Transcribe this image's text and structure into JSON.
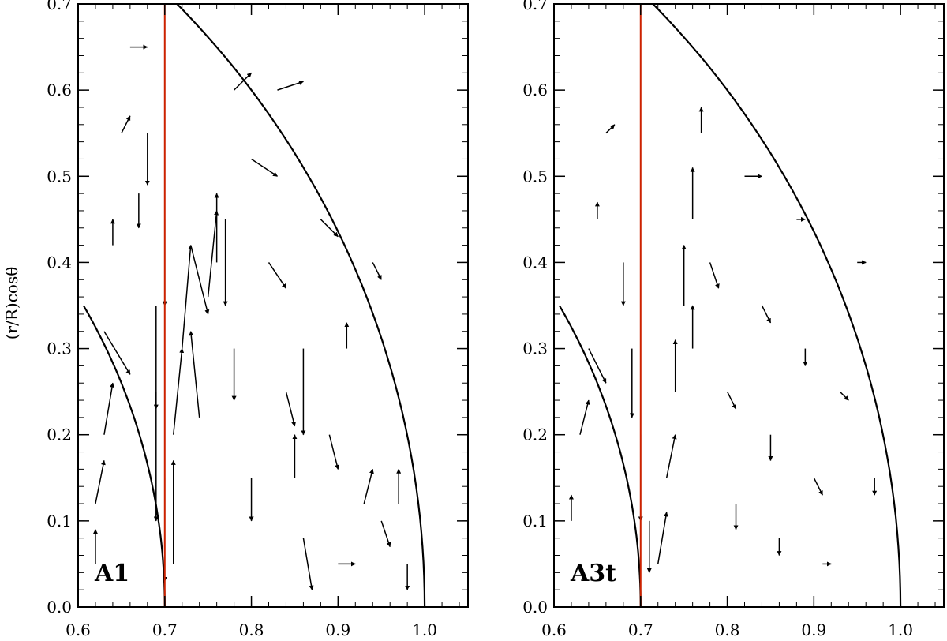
{
  "chart_data": [
    {
      "type": "scatter",
      "panel": "A1",
      "panel_label": "A1",
      "ylabel": "(r/R)cosθ",
      "xlim": [
        0.6,
        1.05
      ],
      "ylim": [
        0.0,
        0.7
      ],
      "x_ticks": [
        "0.6",
        "0.7",
        "0.8",
        "0.9",
        "1.0"
      ],
      "y_ticks": [
        "0.0",
        "0.1",
        "0.2",
        "0.3",
        "0.4",
        "0.5",
        "0.6",
        "0.7"
      ],
      "colors": {
        "frame": "#000000",
        "arrows": "#000000",
        "marker_line": "#cc2200"
      },
      "vertical_line_x": 0.7,
      "outer_boundary_radius": 1.0,
      "inner_boundary_radius": 0.7,
      "inner_boundary_angle_deg": 30,
      "vectors": [
        [
          0.62,
          0.05,
          0.0,
          0.04
        ],
        [
          0.62,
          0.12,
          0.01,
          0.05
        ],
        [
          0.63,
          0.2,
          0.01,
          0.06
        ],
        [
          0.63,
          0.32,
          0.03,
          -0.05
        ],
        [
          0.64,
          0.42,
          0.0,
          0.03
        ],
        [
          0.65,
          0.55,
          0.01,
          0.02
        ],
        [
          0.66,
          0.65,
          0.02,
          0.0
        ],
        [
          0.67,
          0.48,
          0.0,
          -0.04
        ],
        [
          0.68,
          0.55,
          0.0,
          -0.06
        ],
        [
          0.69,
          0.35,
          0.0,
          -0.12
        ],
        [
          0.69,
          0.25,
          0.0,
          -0.15
        ],
        [
          0.7,
          0.45,
          0.0,
          -0.1
        ],
        [
          0.7,
          0.15,
          0.0,
          -0.12
        ],
        [
          0.71,
          0.05,
          0.0,
          0.12
        ],
        [
          0.71,
          0.2,
          0.01,
          0.1
        ],
        [
          0.72,
          0.3,
          0.01,
          0.12
        ],
        [
          0.73,
          0.42,
          0.02,
          -0.08
        ],
        [
          0.74,
          0.22,
          -0.01,
          0.1
        ],
        [
          0.75,
          0.36,
          0.01,
          0.1
        ],
        [
          0.76,
          0.4,
          0.0,
          0.08
        ],
        [
          0.77,
          0.45,
          0.0,
          -0.1
        ],
        [
          0.78,
          0.6,
          0.02,
          0.02
        ],
        [
          0.78,
          0.3,
          0.0,
          -0.06
        ],
        [
          0.8,
          0.52,
          0.03,
          -0.02
        ],
        [
          0.8,
          0.15,
          0.0,
          -0.05
        ],
        [
          0.82,
          0.4,
          0.02,
          -0.03
        ],
        [
          0.83,
          0.6,
          0.03,
          0.01
        ],
        [
          0.84,
          0.25,
          0.01,
          -0.04
        ],
        [
          0.85,
          0.15,
          0.0,
          0.05
        ],
        [
          0.86,
          0.3,
          0.0,
          -0.1
        ],
        [
          0.86,
          0.08,
          0.01,
          -0.06
        ],
        [
          0.88,
          0.45,
          0.02,
          -0.02
        ],
        [
          0.89,
          0.2,
          0.01,
          -0.04
        ],
        [
          0.9,
          0.05,
          0.02,
          0.0
        ],
        [
          0.91,
          0.3,
          0.0,
          0.03
        ],
        [
          0.93,
          0.12,
          0.01,
          0.04
        ],
        [
          0.94,
          0.4,
          0.01,
          -0.02
        ],
        [
          0.95,
          0.1,
          0.01,
          -0.03
        ],
        [
          0.97,
          0.12,
          0.0,
          0.04
        ],
        [
          0.98,
          0.05,
          0.0,
          -0.03
        ]
      ]
    },
    {
      "type": "scatter",
      "panel": "A3t",
      "panel_label": "A3t",
      "ylabel": "",
      "xlim": [
        0.6,
        1.05
      ],
      "ylim": [
        0.0,
        0.7
      ],
      "x_ticks": [
        "0.6",
        "0.7",
        "0.8",
        "0.9",
        "1.0"
      ],
      "y_ticks": [
        "0.0",
        "0.1",
        "0.2",
        "0.3",
        "0.4",
        "0.5",
        "0.6",
        "0.7"
      ],
      "colors": {
        "frame": "#000000",
        "arrows": "#000000",
        "marker_line": "#cc2200"
      },
      "vertical_line_x": 0.7,
      "outer_boundary_radius": 1.0,
      "inner_boundary_radius": 0.7,
      "inner_boundary_angle_deg": 30,
      "vectors": [
        [
          0.62,
          0.1,
          0.0,
          0.03
        ],
        [
          0.63,
          0.2,
          0.01,
          0.04
        ],
        [
          0.64,
          0.3,
          0.02,
          -0.04
        ],
        [
          0.65,
          0.45,
          0.0,
          0.02
        ],
        [
          0.66,
          0.55,
          0.01,
          0.01
        ],
        [
          0.68,
          0.4,
          0.0,
          -0.05
        ],
        [
          0.69,
          0.3,
          0.0,
          -0.08
        ],
        [
          0.7,
          0.2,
          0.0,
          -0.1
        ],
        [
          0.71,
          0.1,
          0.0,
          -0.06
        ],
        [
          0.72,
          0.05,
          0.01,
          0.06
        ],
        [
          0.73,
          0.15,
          0.01,
          0.05
        ],
        [
          0.74,
          0.25,
          0.0,
          0.06
        ],
        [
          0.75,
          0.35,
          0.0,
          0.07
        ],
        [
          0.76,
          0.45,
          0.0,
          0.06
        ],
        [
          0.76,
          0.3,
          0.0,
          0.05
        ],
        [
          0.77,
          0.55,
          0.0,
          0.03
        ],
        [
          0.78,
          0.4,
          0.01,
          -0.03
        ],
        [
          0.8,
          0.25,
          0.01,
          -0.02
        ],
        [
          0.81,
          0.12,
          0.0,
          -0.03
        ],
        [
          0.82,
          0.5,
          0.02,
          0.0
        ],
        [
          0.84,
          0.35,
          0.01,
          -0.02
        ],
        [
          0.85,
          0.2,
          0.0,
          -0.03
        ],
        [
          0.86,
          0.08,
          0.0,
          -0.02
        ],
        [
          0.88,
          0.45,
          0.01,
          0.0
        ],
        [
          0.89,
          0.3,
          0.0,
          -0.02
        ],
        [
          0.9,
          0.15,
          0.01,
          -0.02
        ],
        [
          0.91,
          0.05,
          0.01,
          0.0
        ],
        [
          0.93,
          0.25,
          0.01,
          -0.01
        ],
        [
          0.95,
          0.4,
          0.01,
          0.0
        ],
        [
          0.97,
          0.15,
          0.0,
          -0.02
        ]
      ]
    }
  ]
}
